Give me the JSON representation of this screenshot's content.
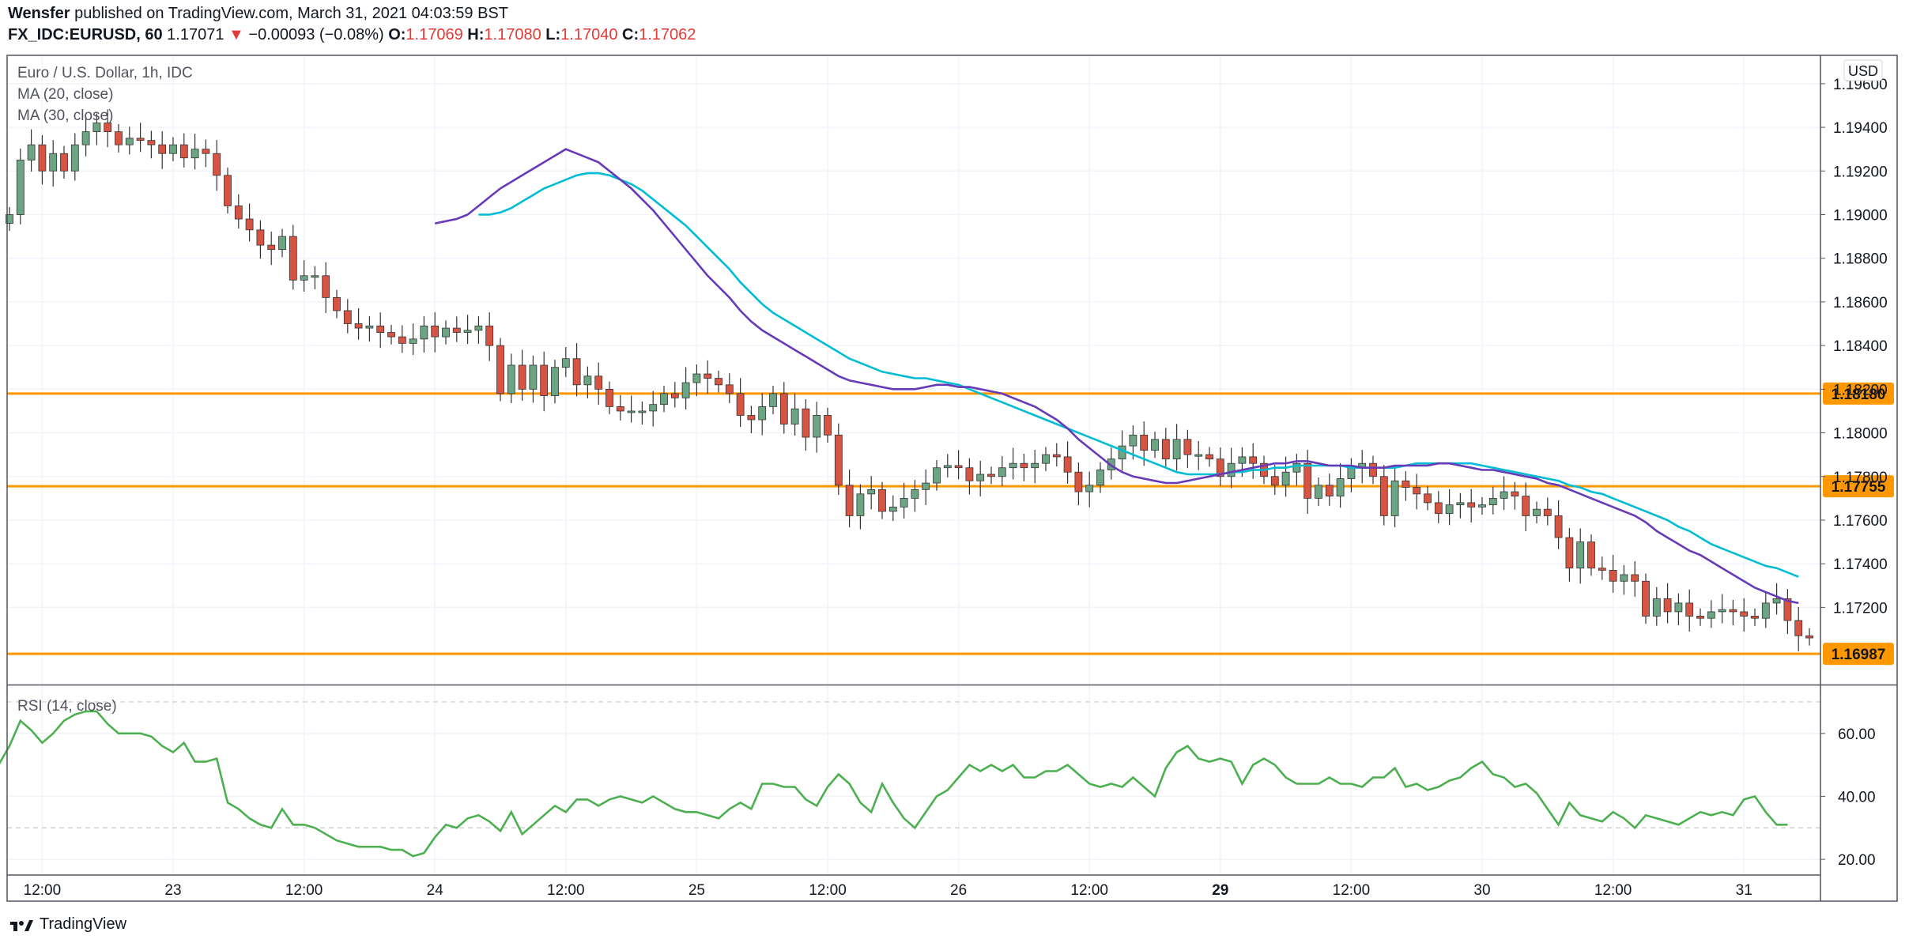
{
  "header": {
    "author": "Wensfer",
    "published_text": "published on TradingView.com, March 31, 2021 04:03:59 BST",
    "symbol": "FX_IDC:EURUSD, 60",
    "last_price": "1.17071",
    "change_arrow": "▼",
    "change": "−0.00093 (−0.08%)",
    "ohlc": [
      {
        "label": "O:",
        "value": "1.17069"
      },
      {
        "label": "H:",
        "value": "1.17080"
      },
      {
        "label": "L:",
        "value": "1.17040"
      },
      {
        "label": "C:",
        "value": "1.17062"
      }
    ]
  },
  "legend": {
    "instrument": "Euro / U.S. Dollar, 1h, IDC",
    "ma20": "MA (20, close)",
    "ma30": "MA (30, close)",
    "rsi": "RSI (14, close)"
  },
  "footer": {
    "brand": "TradingView"
  },
  "colors": {
    "up_candle": "#6ba583",
    "down_candle": "#d75442",
    "wick": "#333333",
    "ma20": "#673ab7",
    "ma30": "#00bcd4",
    "level": "#ff9800",
    "rsi": "#4caf50",
    "grid": "#f0f3fa",
    "border": "#50535e"
  },
  "chart_data": {
    "type": "candlestick",
    "interval": "1h",
    "currency_label": "USD",
    "price_axis": {
      "ylim": [
        1.1685,
        1.1973
      ],
      "ticks": [
        "1.19600",
        "1.19400",
        "1.19200",
        "1.19000",
        "1.18800",
        "1.18600",
        "1.18400",
        "1.18200",
        "1.18000",
        "1.17800",
        "1.17600",
        "1.17400",
        "1.17200"
      ]
    },
    "x_axis_labels": [
      {
        "label": "12:00",
        "index": 3
      },
      {
        "label": "23",
        "index": 15
      },
      {
        "label": "12:00",
        "index": 27
      },
      {
        "label": "24",
        "index": 39
      },
      {
        "label": "12:00",
        "index": 51
      },
      {
        "label": "25",
        "index": 63
      },
      {
        "label": "12:00",
        "index": 75
      },
      {
        "label": "26",
        "index": 87
      },
      {
        "label": "12:00",
        "index": 99
      },
      {
        "label": "29",
        "index": 111,
        "bold": true
      },
      {
        "label": "12:00",
        "index": 123
      },
      {
        "label": "30",
        "index": 135
      },
      {
        "label": "12:00",
        "index": 147
      },
      {
        "label": "31",
        "index": 159
      }
    ],
    "levels": [
      {
        "label": "1.18180",
        "value": 1.1818
      },
      {
        "label": "1.17755",
        "value": 1.17755
      },
      {
        "label": "1.16987",
        "value": 1.16987
      }
    ],
    "close": [
      1.19,
      1.1925,
      1.1932,
      1.192,
      1.1928,
      1.192,
      1.1932,
      1.1938,
      1.1942,
      1.1938,
      1.1932,
      1.1935,
      1.1934,
      1.1932,
      1.1928,
      1.1932,
      1.1926,
      1.193,
      1.1928,
      1.1918,
      1.1904,
      1.1898,
      1.1893,
      1.1886,
      1.1884,
      1.189,
      1.187,
      1.1872,
      1.1872,
      1.1862,
      1.1856,
      1.185,
      1.1848,
      1.1849,
      1.1846,
      1.1844,
      1.1841,
      1.1843,
      1.1849,
      1.1844,
      1.1848,
      1.1846,
      1.1847,
      1.1849,
      1.184,
      1.1818,
      1.1831,
      1.182,
      1.1831,
      1.1817,
      1.183,
      1.1834,
      1.1822,
      1.1826,
      1.182,
      1.1812,
      1.181,
      1.181,
      1.181,
      1.1813,
      1.1818,
      1.1816,
      1.1823,
      1.1827,
      1.1825,
      1.1822,
      1.1818,
      1.1808,
      1.1806,
      1.1812,
      1.1818,
      1.1804,
      1.1811,
      1.1798,
      1.1808,
      1.1799,
      1.1776,
      1.1762,
      1.1772,
      1.1774,
      1.1764,
      1.1766,
      1.177,
      1.1774,
      1.1777,
      1.1784,
      1.1785,
      1.1784,
      1.1778,
      1.1781,
      1.178,
      1.1784,
      1.1786,
      1.1784,
      1.1786,
      1.179,
      1.1789,
      1.1782,
      1.1773,
      1.1776,
      1.1783,
      1.1788,
      1.1794,
      1.1799,
      1.1792,
      1.1797,
      1.1788,
      1.1797,
      1.179,
      1.179,
      1.1788,
      1.178,
      1.1786,
      1.1789,
      1.1786,
      1.178,
      1.1776,
      1.1782,
      1.1786,
      1.177,
      1.1776,
      1.1771,
      1.1779,
      1.1784,
      1.1786,
      1.178,
      1.1762,
      1.1778,
      1.1775,
      1.1772,
      1.1768,
      1.1763,
      1.1767,
      1.1768,
      1.1766,
      1.1767,
      1.177,
      1.1773,
      1.1771,
      1.1762,
      1.1765,
      1.1762,
      1.1752,
      1.1738,
      1.175,
      1.1738,
      1.1737,
      1.1732,
      1.1735,
      1.1732,
      1.1716,
      1.1724,
      1.1718,
      1.1722,
      1.1716,
      1.1715,
      1.1718,
      1.1719,
      1.1718,
      1.1716,
      1.1715,
      1.1722,
      1.1724,
      1.1714,
      1.1707,
      1.1706
    ],
    "ma20": [
      1.1896,
      1.1897,
      1.1898,
      1.19,
      1.1904,
      1.1908,
      1.1912,
      1.1915,
      1.1918,
      1.1921,
      1.1924,
      1.1927,
      1.193,
      1.1928,
      1.1926,
      1.1924,
      1.192,
      1.1916,
      1.1912,
      1.1907,
      1.1902,
      1.1896,
      1.189,
      1.1884,
      1.1878,
      1.1872,
      1.1867,
      1.1862,
      1.1856,
      1.1851,
      1.1847,
      1.1844,
      1.1841,
      1.1838,
      1.1835,
      1.1832,
      1.1829,
      1.1826,
      1.1824,
      1.1823,
      1.1822,
      1.1821,
      1.182,
      1.182,
      1.182,
      1.1821,
      1.1822,
      1.1822,
      1.1821,
      1.1821,
      1.182,
      1.1819,
      1.1818,
      1.1816,
      1.1814,
      1.1812,
      1.1809,
      1.1806,
      1.1802,
      1.1797,
      1.1793,
      1.1789,
      1.1785,
      1.1782,
      1.178,
      1.1779,
      1.1778,
      1.1777,
      1.1777,
      1.1778,
      1.1779,
      1.178,
      1.1781,
      1.1782,
      1.1783,
      1.1784,
      1.1785,
      1.1786,
      1.1786,
      1.1787,
      1.1787,
      1.1786,
      1.1785,
      1.1785,
      1.1785,
      1.1784,
      1.1784,
      1.1784,
      1.1785,
      1.1785,
      1.1785,
      1.1785,
      1.1786,
      1.1786,
      1.1785,
      1.1784,
      1.1783,
      1.1783,
      1.1782,
      1.1781,
      1.178,
      1.1779,
      1.1777,
      1.1776,
      1.1774,
      1.1772,
      1.177,
      1.1768,
      1.1766,
      1.1764,
      1.1762,
      1.1759,
      1.1755,
      1.1752,
      1.1749,
      1.1746,
      1.1744,
      1.1741,
      1.1738,
      1.1735,
      1.1732,
      1.1729,
      1.1727,
      1.1725,
      1.1723,
      1.1722
    ],
    "ma30": [
      1.19,
      1.19,
      1.1901,
      1.1903,
      1.1906,
      1.1909,
      1.1912,
      1.1914,
      1.1916,
      1.1918,
      1.1919,
      1.1919,
      1.1918,
      1.1916,
      1.1914,
      1.1911,
      1.1907,
      1.1903,
      1.1899,
      1.1895,
      1.189,
      1.1885,
      1.188,
      1.1875,
      1.1869,
      1.1864,
      1.1859,
      1.1855,
      1.1852,
      1.1849,
      1.1846,
      1.1843,
      1.184,
      1.1837,
      1.1834,
      1.1832,
      1.183,
      1.1828,
      1.1827,
      1.1826,
      1.1825,
      1.1825,
      1.1824,
      1.1823,
      1.1822,
      1.182,
      1.1818,
      1.1816,
      1.1814,
      1.1812,
      1.181,
      1.1808,
      1.1806,
      1.1804,
      1.1802,
      1.18,
      1.1798,
      1.1796,
      1.1794,
      1.1792,
      1.179,
      1.1788,
      1.1786,
      1.1784,
      1.1782,
      1.1781,
      1.1781,
      1.1781,
      1.1781,
      1.1782,
      1.1782,
      1.1783,
      1.1783,
      1.1784,
      1.1784,
      1.1785,
      1.1785,
      1.1785,
      1.1785,
      1.1785,
      1.1784,
      1.1784,
      1.1784,
      1.1784,
      1.1784,
      1.1785,
      1.1786,
      1.1786,
      1.1786,
      1.1786,
      1.1786,
      1.1786,
      1.1785,
      1.1784,
      1.1783,
      1.1782,
      1.1781,
      1.178,
      1.1779,
      1.1778,
      1.1776,
      1.1775,
      1.1773,
      1.1772,
      1.177,
      1.1768,
      1.1766,
      1.1764,
      1.1762,
      1.176,
      1.1757,
      1.1755,
      1.1752,
      1.1749,
      1.1747,
      1.1745,
      1.1743,
      1.1741,
      1.1739,
      1.1738,
      1.1736,
      1.1734
    ],
    "rsi_axis": {
      "ylim": [
        15,
        75
      ],
      "ticks": [
        "60.00",
        "40.00",
        "20.00"
      ],
      "bands": [
        30,
        70
      ]
    },
    "rsi": [
      50,
      56,
      64,
      61,
      57,
      60,
      64,
      66,
      67,
      67,
      63,
      60,
      60,
      60,
      59,
      56,
      54,
      57,
      51,
      51,
      52,
      38,
      36,
      33,
      31,
      30,
      36,
      31,
      31,
      30,
      28,
      26,
      25,
      24,
      24,
      24,
      23,
      23,
      21,
      22,
      27,
      31,
      30,
      33,
      34,
      32,
      29,
      35,
      28,
      31,
      34,
      37,
      35,
      39,
      39,
      37,
      39,
      40,
      39,
      38,
      40,
      38,
      36,
      35,
      35,
      34,
      33,
      36,
      38,
      36,
      44,
      44,
      43,
      43,
      39,
      37,
      43,
      47,
      44,
      38,
      35,
      44,
      38,
      33,
      30,
      35,
      40,
      42,
      46,
      50,
      48,
      50,
      48,
      50,
      46,
      46,
      48,
      48,
      50,
      47,
      44,
      43,
      44,
      43,
      46,
      43,
      40,
      49,
      54,
      56,
      52,
      51,
      52,
      51,
      44,
      50,
      52,
      50,
      46,
      44,
      44,
      44,
      46,
      44,
      44,
      43,
      46,
      46,
      49,
      43,
      44,
      42,
      43,
      45,
      46,
      49,
      51,
      47,
      46,
      43,
      44,
      41,
      36,
      31,
      38,
      34,
      33,
      32,
      35,
      33,
      30,
      34,
      33,
      32,
      31,
      33,
      35,
      34,
      35,
      34,
      39,
      40,
      35,
      31,
      31
    ]
  }
}
